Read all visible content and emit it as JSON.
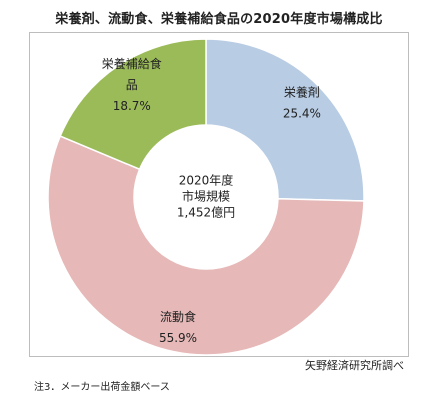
{
  "chart_data": {
    "type": "pie",
    "title": "栄養剤、流動食、栄養補給食品の2020年度市場構成比",
    "categories": [
      "栄養剤",
      "流動食",
      "栄養補給食品"
    ],
    "values": [
      25.4,
      55.9,
      18.7
    ],
    "value_labels": [
      "25.4%",
      "55.9%",
      "18.7%"
    ],
    "category_label_lines": [
      [
        "栄養剤"
      ],
      [
        "流動食"
      ],
      [
        "栄養補給食",
        "品"
      ]
    ],
    "colors": [
      "#b8cce4",
      "#e6b8b7",
      "#9bbb59"
    ],
    "center_label": [
      "2020年度",
      "市場規模",
      "1,452億円"
    ],
    "legend": "none"
  },
  "footnote": "注3．メーカー出荷金額ベース",
  "source": "矢野経済研究所調べ"
}
